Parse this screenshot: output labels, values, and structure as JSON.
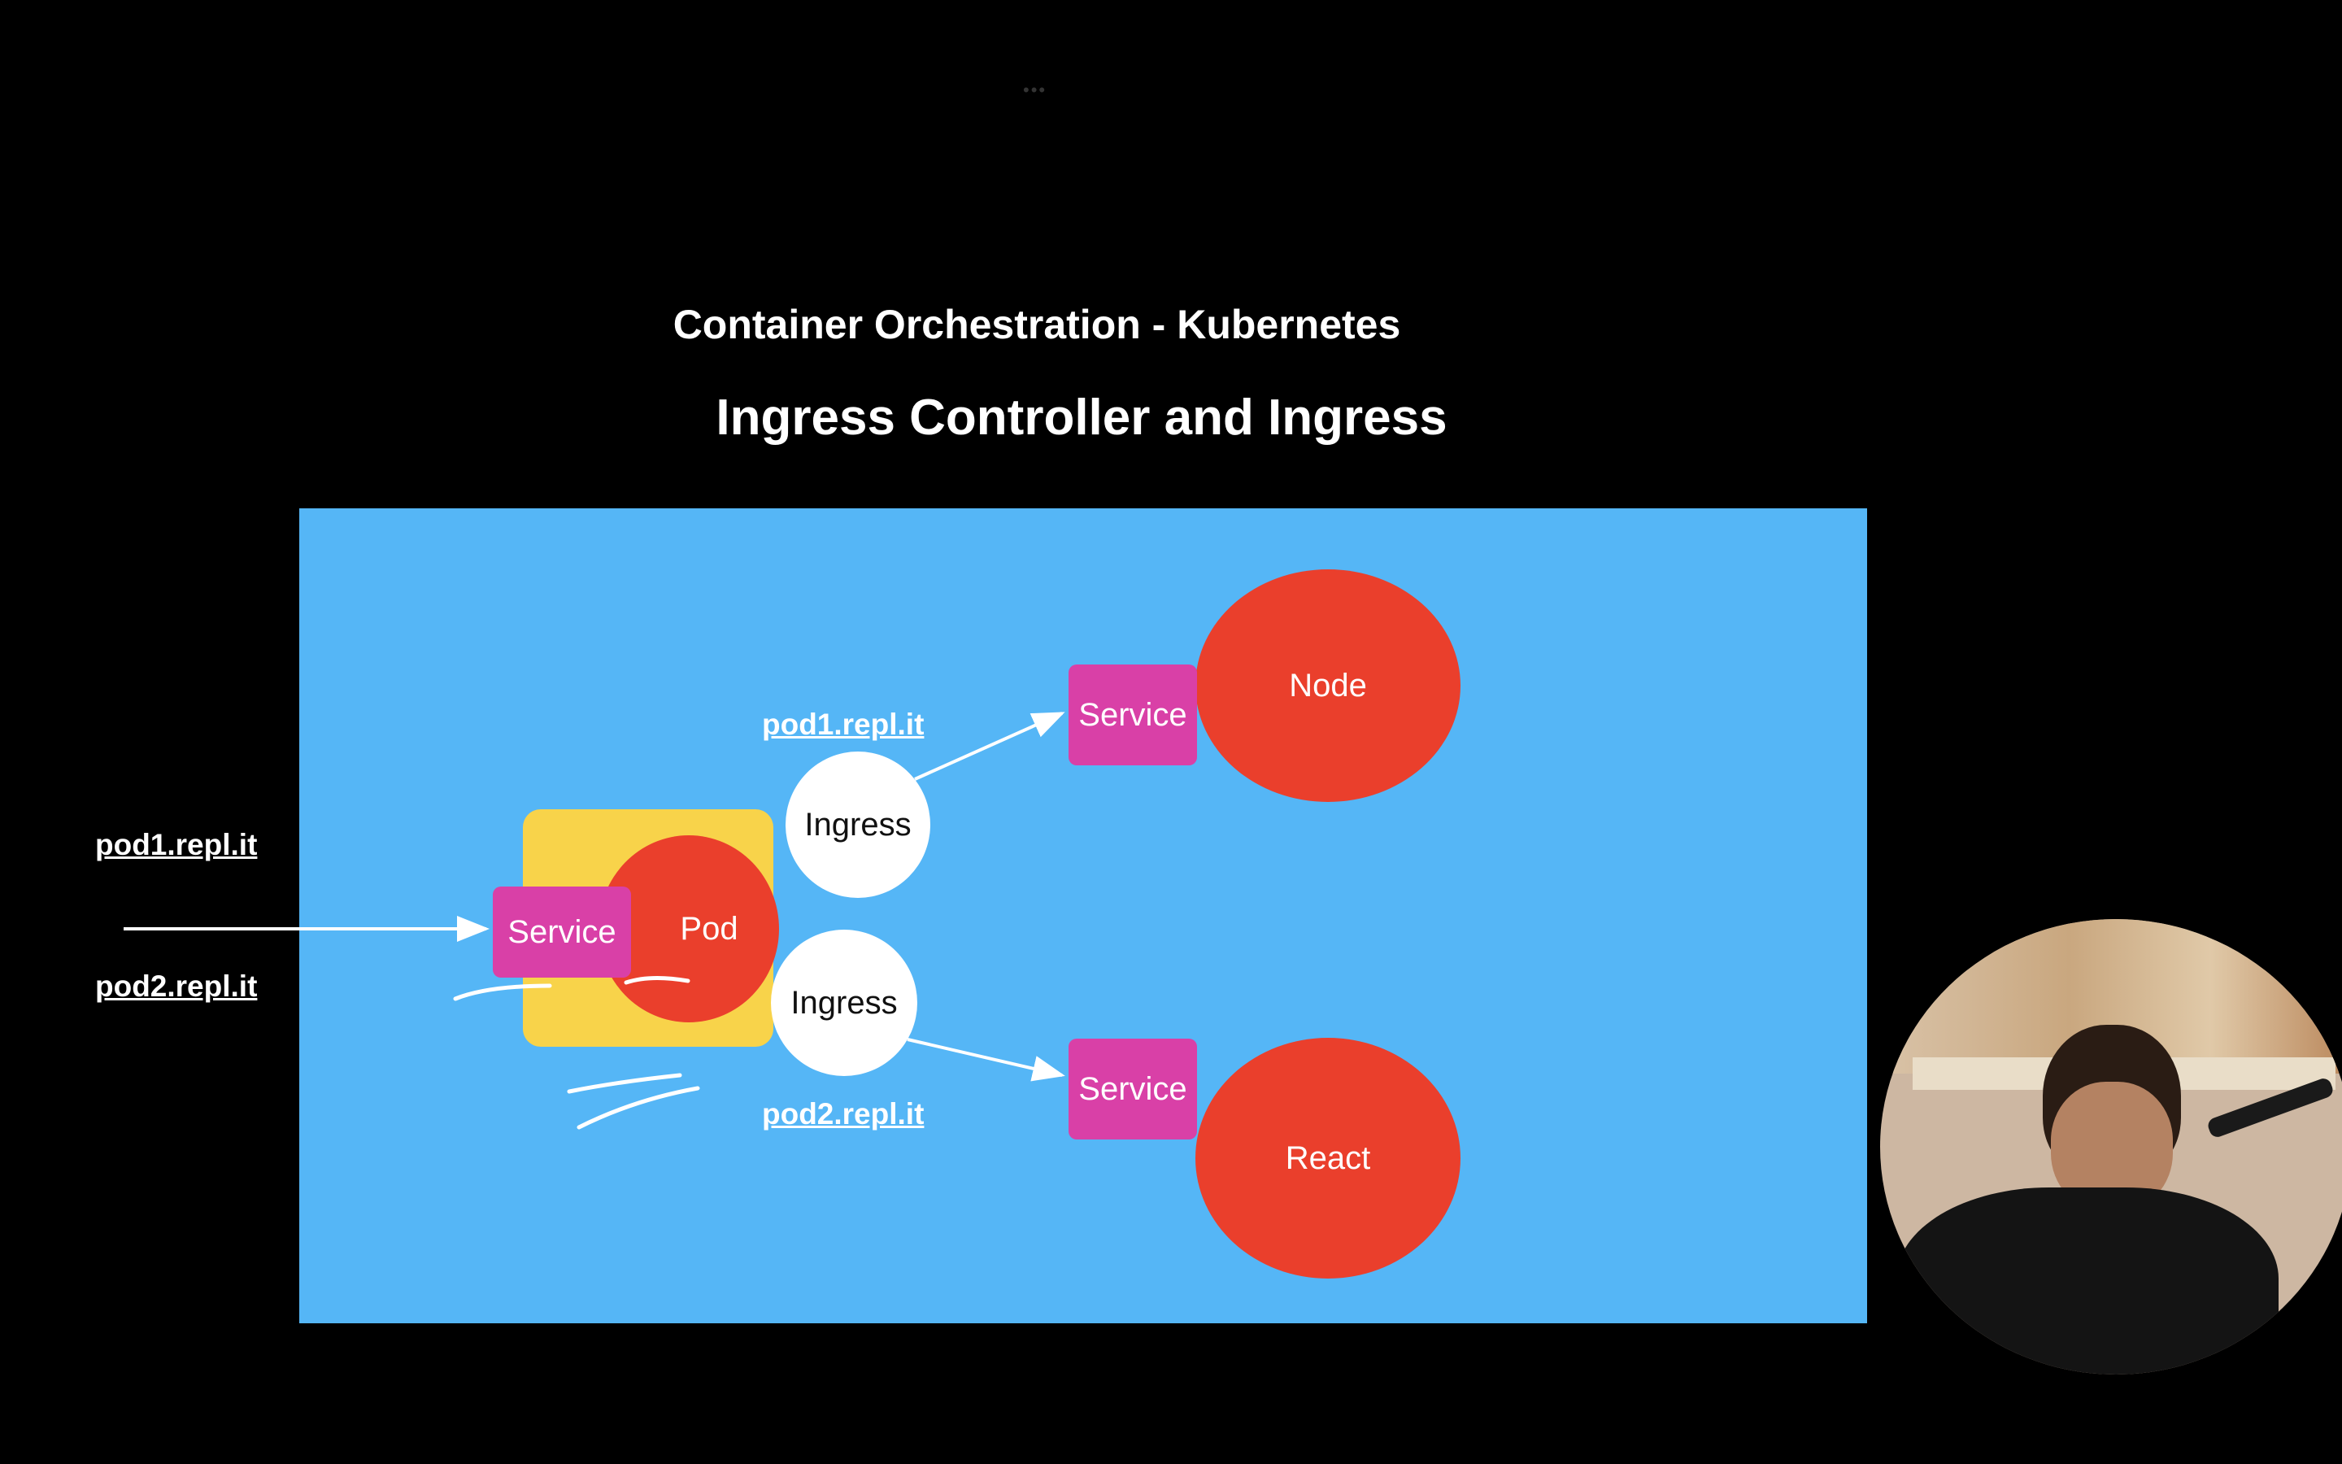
{
  "header": {
    "dots": "•••",
    "subtitle": "Container Orchestration - Kubernetes",
    "title": "Ingress Controller and Ingress"
  },
  "left_labels": {
    "host1": "pod1.repl.it",
    "host2": "pod2.repl.it"
  },
  "diagram": {
    "entry_service": "Service",
    "entry_pod": "Pod",
    "ingress_top": "Ingress",
    "ingress_bottom": "Ingress",
    "route_top_host": "pod1.repl.it",
    "route_bottom_host": "pod2.repl.it",
    "service_top": "Service",
    "service_bottom": "Service",
    "node_top": "Node",
    "node_bottom": "React"
  },
  "colors": {
    "background": "#000000",
    "canvas": "#55b6f6",
    "red": "#ea3f2c",
    "magenta": "#d940a7",
    "yellow": "#f8d34a",
    "white": "#ffffff"
  }
}
